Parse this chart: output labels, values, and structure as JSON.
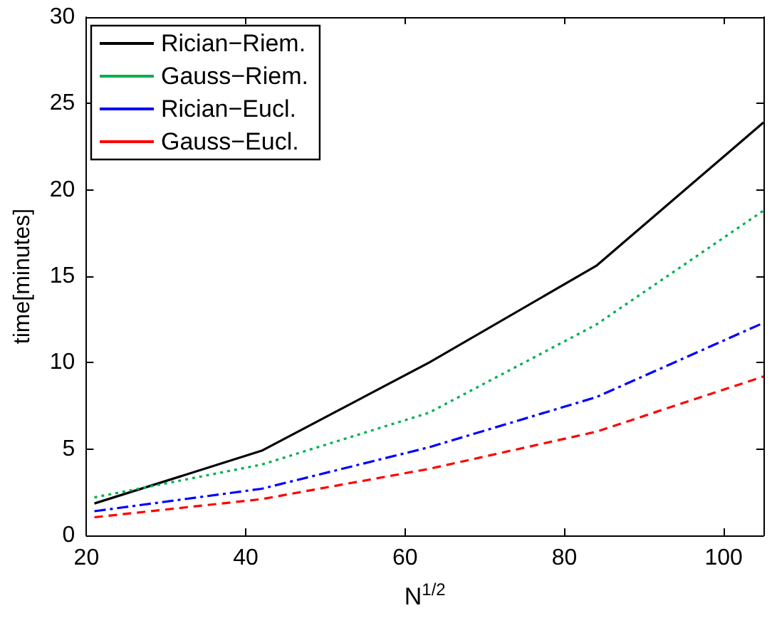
{
  "chart_data": {
    "type": "line",
    "xlabel": "N$^{1/2}$",
    "ylabel": "time[minutes]",
    "x": [
      21,
      42,
      63,
      84,
      105
    ],
    "series": [
      {
        "name": "Rician−Riem.",
        "color": "#000000",
        "line_style": "solid",
        "values": [
          1.85,
          4.9,
          10.0,
          15.6,
          23.9
        ]
      },
      {
        "name": "Gauss−Riem.",
        "color": "#00b050",
        "line_style": "dotted",
        "values": [
          2.2,
          4.1,
          7.1,
          12.2,
          18.8
        ]
      },
      {
        "name": "Rician−Eucl.",
        "color": "#0000ff",
        "line_style": "dashdot",
        "values": [
          1.4,
          2.7,
          5.1,
          8.0,
          12.3
        ]
      },
      {
        "name": "Gauss−Eucl.",
        "color": "#ff0000",
        "line_style": "dashed",
        "values": [
          1.05,
          2.1,
          3.85,
          6.0,
          9.2
        ]
      }
    ],
    "xlim": [
      20,
      105
    ],
    "xticks": [
      20,
      40,
      60,
      80,
      100
    ],
    "ylim": [
      0,
      30
    ],
    "yticks": [
      0,
      5,
      10,
      15,
      20,
      25,
      30
    ],
    "legend": "top left",
    "grid": false,
    "marker": "none"
  }
}
